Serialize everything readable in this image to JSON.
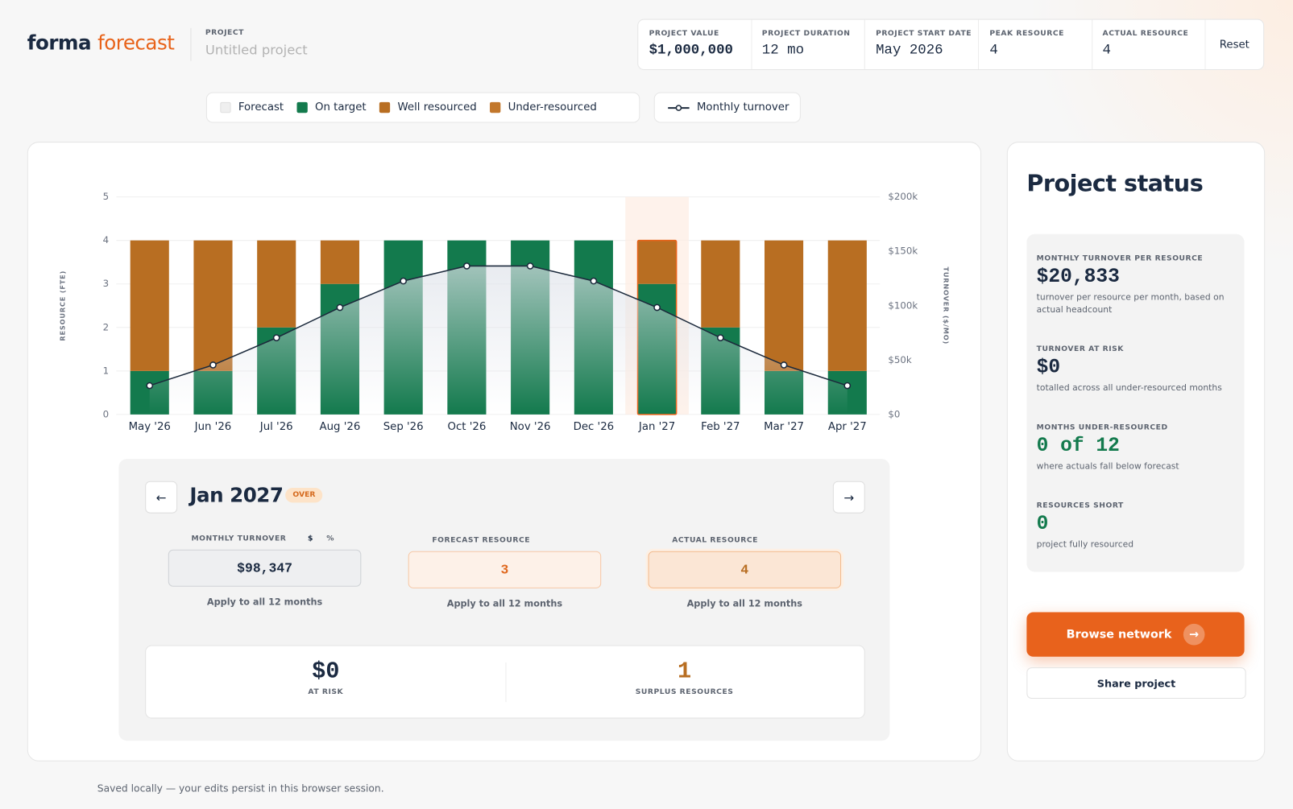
{
  "header": {
    "brand_1": "forma",
    "brand_2": "forecast",
    "project_label": "PROJECT",
    "project_name": "Untitled project",
    "stats": [
      {
        "label": "PROJECT VALUE",
        "value": "$1,000,000"
      },
      {
        "label": "PROJECT DURATION",
        "value": "12 mo"
      },
      {
        "label": "PROJECT START DATE",
        "value": "May 2026"
      },
      {
        "label": "PEAK RESOURCE",
        "value": "4"
      },
      {
        "label": "ACTUAL RESOURCE",
        "value": "4"
      }
    ],
    "reset": "Reset"
  },
  "chart_data": {
    "type": "bar",
    "stacked": true,
    "y_label": "RESOURCE (FTE)",
    "y2_label": "TURNOVER ($/MO)",
    "categories": [
      "May '26",
      "Jun '26",
      "Jul '26",
      "Aug '26",
      "Sep '26",
      "Oct '26",
      "Nov '26",
      "Dec '26",
      "Jan '27",
      "Feb '27",
      "Mar '27",
      "Apr '27"
    ],
    "selected_category": "Jan '27",
    "series": [
      {
        "name": "Forecast",
        "type": "bar",
        "stacked": false,
        "color": "#efefef",
        "values": [
          1,
          1,
          2,
          3,
          4,
          4,
          4,
          4,
          3,
          2,
          1,
          1
        ]
      },
      {
        "name": "On target",
        "type": "bar",
        "color": "#137a4d",
        "values": [
          1,
          1,
          2,
          3,
          4,
          4,
          4,
          4,
          3,
          2,
          1,
          1
        ]
      },
      {
        "name": "Well resourced",
        "type": "bar",
        "color": "#b86e22",
        "values": [
          3,
          3,
          2,
          1,
          0,
          0,
          0,
          0,
          1,
          2,
          3,
          3
        ]
      },
      {
        "name": "Under-resourced",
        "type": "bar",
        "color": "#c2772b",
        "values": [
          0,
          0,
          0,
          0,
          0,
          0,
          0,
          0,
          0,
          0,
          0,
          0
        ]
      },
      {
        "name": "Monthly turnover",
        "type": "line",
        "axis": "y2",
        "color": "#1c2a3c",
        "values": [
          26500,
          45500,
          70500,
          98347,
          122700,
          136500,
          136500,
          122700,
          98347,
          70500,
          45500,
          26500
        ]
      }
    ],
    "ylim": [
      0,
      5
    ],
    "yticks": [
      0,
      1,
      2,
      3,
      4,
      5
    ],
    "y2lim": [
      0,
      200000
    ],
    "y2ticks": [
      {
        "value": 0,
        "label": "$0"
      },
      {
        "value": 50000,
        "label": "$50k"
      },
      {
        "value": 100000,
        "label": "$100k"
      },
      {
        "value": 150000,
        "label": "$150k"
      },
      {
        "value": 200000,
        "label": "$200k"
      }
    ],
    "grid": true
  },
  "detail": {
    "title": "Jan 2027",
    "badge": "OVER",
    "fields": [
      {
        "label": "MONTHLY TURNOVER",
        "value": "$98,347",
        "apply": "Apply to all 12 months"
      },
      {
        "label": "FORECAST RESOURCE",
        "value": "3",
        "apply": "Apply to all 12 months"
      },
      {
        "label": "ACTUAL RESOURCE",
        "value": "4",
        "apply": "Apply to all 12 months"
      }
    ],
    "unit_dollar": "$",
    "unit_percent": "%",
    "summary": [
      {
        "value": "$0",
        "label": "AT RISK"
      },
      {
        "value": "1",
        "label": "SURPLUS RESOURCES"
      }
    ]
  },
  "status": {
    "title": "Project status",
    "items": [
      {
        "label": "MONTHLY TURNOVER PER RESOURCE",
        "value": "$20,833",
        "note": "turnover per resource per month, based on actual headcount"
      },
      {
        "label": "TURNOVER AT RISK",
        "value": "$0",
        "note": "totalled across all under-resourced months"
      },
      {
        "label": "MONTHS UNDER-RESOURCED",
        "value": "0 of 12",
        "note": "where actuals fall below forecast"
      },
      {
        "label": "RESOURCES SHORT",
        "value": "0",
        "note": "project fully resourced"
      }
    ],
    "browse": "Browse network",
    "share": "Share project"
  },
  "footer": "Saved locally — your edits persist in this browser session."
}
